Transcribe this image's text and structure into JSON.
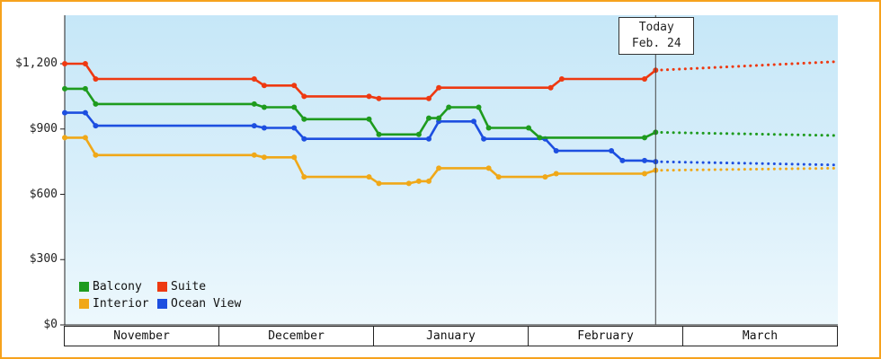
{
  "chart_data": {
    "type": "line",
    "line_style": "step",
    "title": "",
    "steps_format": "[start_day, end_day, price_usd] with day 0 = Nov 1",
    "today": {
      "label_line1": "Today",
      "label_line2": "Feb. 24",
      "day": 115
    },
    "x_axis": {
      "months": [
        "November",
        "December",
        "January",
        "February",
        "March"
      ],
      "days_in_month": [
        30,
        31,
        31,
        28,
        31
      ]
    },
    "y_axis": {
      "ticks": [
        {
          "label": "$1,200",
          "value": 1200
        },
        {
          "label": "$900",
          "value": 900
        },
        {
          "label": "$600",
          "value": 600
        },
        {
          "label": "$300",
          "value": 300
        },
        {
          "label": "$0",
          "value": 0
        }
      ],
      "ylim": [
        0,
        1430
      ],
      "gridlines": false
    },
    "series": [
      {
        "name": "Interior",
        "color": "#f0a818",
        "steps": [
          [
            0,
            4,
            860
          ],
          [
            6,
            37,
            780
          ],
          [
            39,
            45,
            770
          ],
          [
            47,
            60,
            680
          ],
          [
            62,
            68,
            650
          ],
          [
            70,
            72,
            660
          ],
          [
            74,
            84,
            720
          ],
          [
            86,
            95,
            680
          ],
          [
            97,
            113,
            695
          ]
        ],
        "today_value": 710,
        "forecast_value": 720
      },
      {
        "name": "Ocean View",
        "color": "#1d4fe0",
        "steps": [
          [
            0,
            4,
            975
          ],
          [
            6,
            37,
            915
          ],
          [
            39,
            45,
            905
          ],
          [
            47,
            72,
            855
          ],
          [
            74,
            81,
            935
          ],
          [
            83,
            95,
            855
          ],
          [
            97,
            107,
            800
          ],
          [
            109,
            113,
            755
          ]
        ],
        "today_value": 750,
        "forecast_value": 735
      },
      {
        "name": "Balcony",
        "color": "#1e9b1e",
        "steps": [
          [
            0,
            4,
            1085
          ],
          [
            6,
            37,
            1015
          ],
          [
            39,
            45,
            1000
          ],
          [
            47,
            60,
            945
          ],
          [
            62,
            70,
            875
          ],
          [
            72,
            74,
            950
          ],
          [
            76,
            82,
            1000
          ],
          [
            84,
            92,
            905
          ],
          [
            94,
            113,
            860
          ]
        ],
        "today_value": 885,
        "forecast_value": 870
      },
      {
        "name": "Suite",
        "color": "#ee3911",
        "steps": [
          [
            0,
            4,
            1200
          ],
          [
            6,
            37,
            1130
          ],
          [
            39,
            45,
            1100
          ],
          [
            47,
            60,
            1050
          ],
          [
            62,
            72,
            1040
          ],
          [
            74,
            96,
            1090
          ],
          [
            98,
            113,
            1130
          ]
        ],
        "today_value": 1170,
        "forecast_value": 1210
      }
    ],
    "legend": {
      "rows": [
        [
          "Balcony",
          "Suite"
        ],
        [
          "Interior",
          "Ocean View"
        ]
      ]
    }
  },
  "colors": {
    "page_border": "#f6a21d",
    "axis": "#222222",
    "today_line": "#444444",
    "plot_bg_top": "#c6e7f8",
    "plot_bg_bottom": "#edf8fd"
  }
}
